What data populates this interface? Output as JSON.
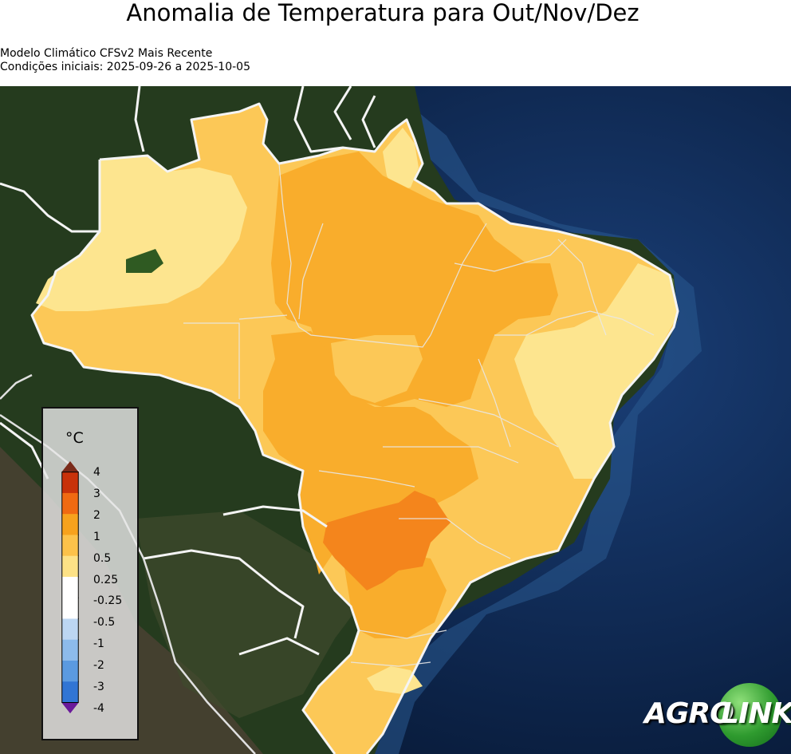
{
  "title": "Anomalia de Temperatura para Out/Nov/Dez",
  "subtitle_line1": "Modelo Climático CFSv2 Mais Recente",
  "subtitle_line2": "Condições iniciais: 2025-09-26 a 2025-10-05",
  "legend": {
    "unit": "°C",
    "levels": [
      {
        "label": "4",
        "color": "#c8320a"
      },
      {
        "label": "3",
        "color": "#f06a12"
      },
      {
        "label": "2",
        "color": "#f7a21d"
      },
      {
        "label": "1",
        "color": "#fcc24a"
      },
      {
        "label": "0.5",
        "color": "#fde286"
      },
      {
        "label": "0.25",
        "color": "#ffffff"
      },
      {
        "label": "-0.25",
        "color": "#ffffff"
      },
      {
        "label": "-0.5",
        "color": "#bcd6f2"
      },
      {
        "label": "-1",
        "color": "#8dbbeb"
      },
      {
        "label": "-2",
        "color": "#5b9ae0"
      },
      {
        "label": "-3",
        "color": "#3175d4"
      },
      {
        "label": "-4",
        "color": "#1e4fc0"
      }
    ],
    "over_color": "#7a2b1a",
    "under_color": "#6a1a9a"
  },
  "logo": {
    "part1": "AGRO",
    "part2": "LINK"
  },
  "colors": {
    "ocean": "#0d2a55",
    "land": "#243a1f",
    "anom_0_5": "#fde58f",
    "anom_1": "#fcc857",
    "anom_2": "#f9ad2c",
    "anom_3": "#f4851c",
    "border": "#f2f2f2"
  }
}
